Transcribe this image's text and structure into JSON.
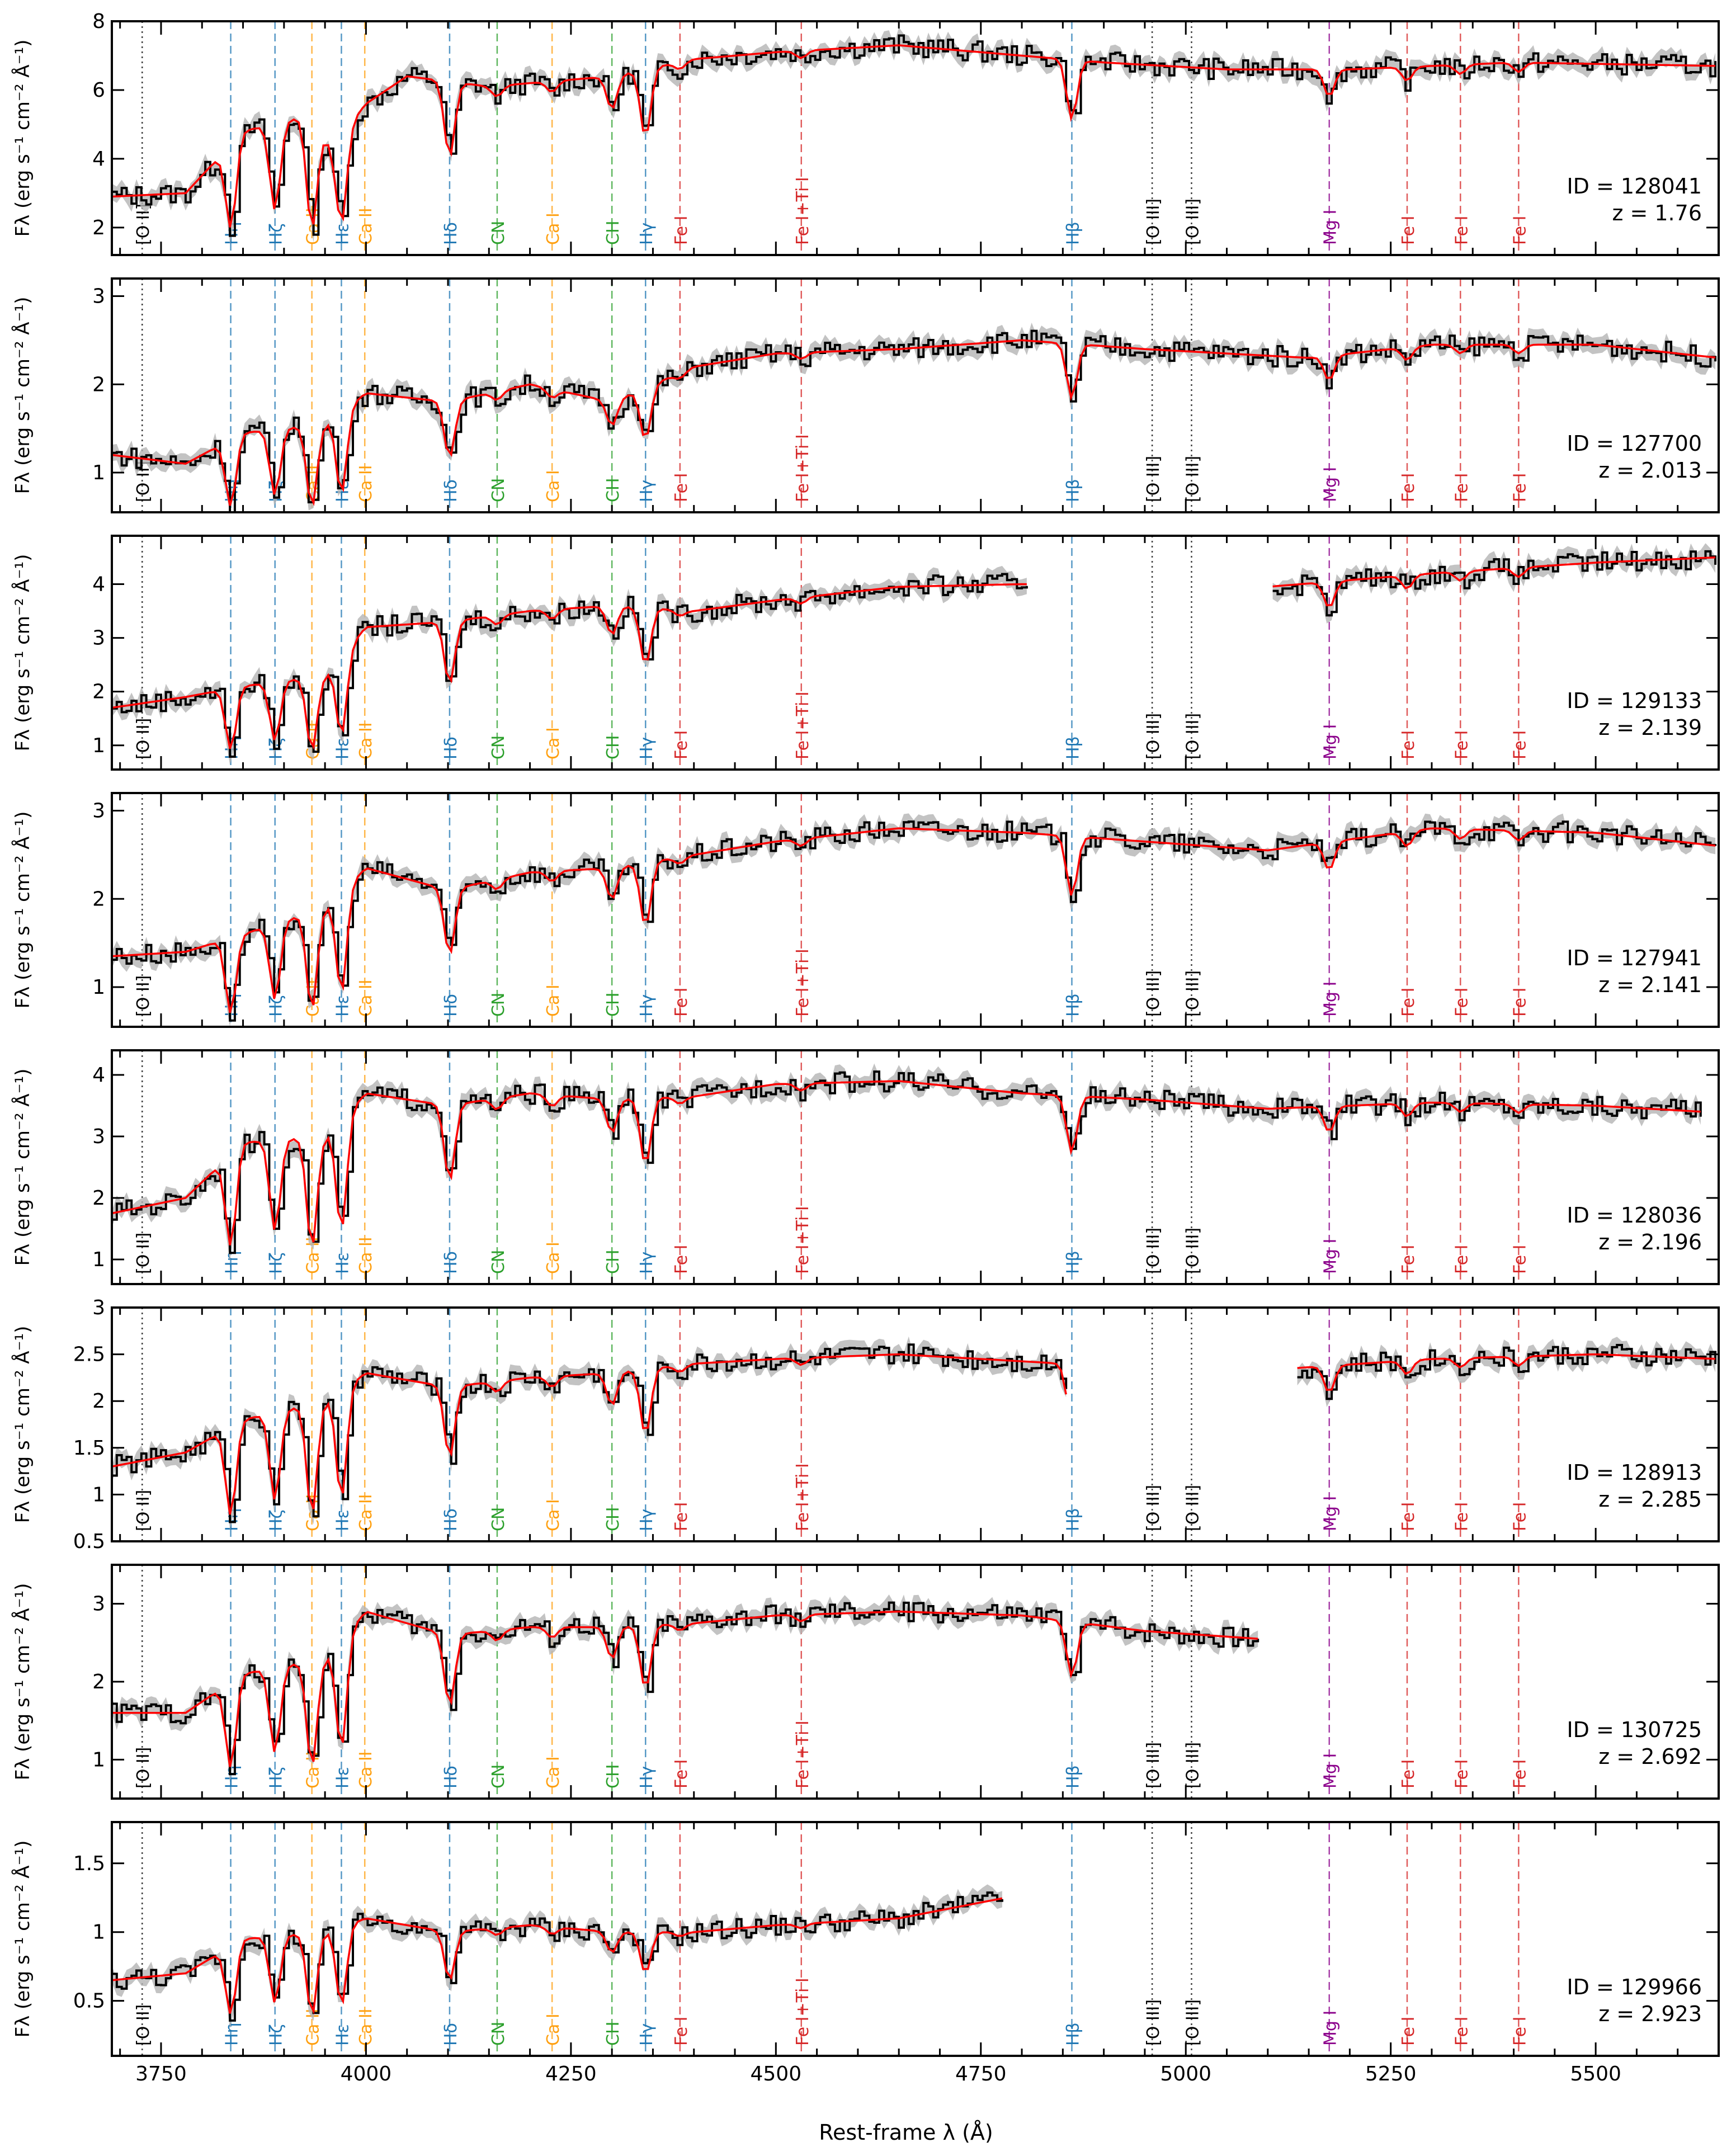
{
  "figure": {
    "xlabel": "Rest-frame λ (Å)",
    "ylabel": "Fλ (erg s⁻¹ cm⁻² Å⁻¹)",
    "x_ticks": [
      "3750",
      "4000",
      "4250",
      "4500",
      "4750",
      "5000",
      "5250",
      "5500"
    ],
    "colors": {
      "observed": "#000000",
      "error_band": "#b4b4b4",
      "model": "#ff0000",
      "balmer": "#1f77b4",
      "calcium": "#ff9f0e",
      "cn_ch": "#2ca02c",
      "iron": "#d62728",
      "magnesium": "#8b008b",
      "oxygen": "#000000"
    }
  },
  "lines": [
    {
      "label": "[O II]",
      "group": "oxygen"
    },
    {
      "label": "Hη",
      "group": "balmer"
    },
    {
      "label": "Hζ",
      "group": "balmer"
    },
    {
      "label": "Ca II",
      "group": "calcium"
    },
    {
      "label": "Hε",
      "group": "balmer"
    },
    {
      "label": "Ca II",
      "group": "calcium"
    },
    {
      "label": "Hδ",
      "group": "balmer"
    },
    {
      "label": "CN",
      "group": "cn_ch"
    },
    {
      "label": "Ca I",
      "group": "calcium"
    },
    {
      "label": "CH",
      "group": "cn_ch"
    },
    {
      "label": "Hγ",
      "group": "balmer"
    },
    {
      "label": "Fe I",
      "group": "iron"
    },
    {
      "label": "Fe I+Ti I",
      "group": "iron"
    },
    {
      "label": "Hβ",
      "group": "balmer"
    },
    {
      "label": "[O III]",
      "group": "oxygen"
    },
    {
      "label": "[O III]",
      "group": "oxygen"
    },
    {
      "label": "Mg I",
      "group": "magnesium"
    },
    {
      "label": "Fe I",
      "group": "iron"
    },
    {
      "label": "Fe I",
      "group": "iron"
    },
    {
      "label": "Fe I",
      "group": "iron"
    }
  ],
  "chart_data": [
    {
      "type": "line",
      "id_label": "ID = 128041",
      "z_label": "z = 1.76",
      "xlim": [
        3690,
        5650
      ],
      "ylim": [
        1.2,
        8.0
      ],
      "yticks": [
        2,
        4,
        6,
        8
      ],
      "continuum": [
        [
          3690,
          2.9
        ],
        [
          3780,
          3.0
        ],
        [
          3850,
          4.8
        ],
        [
          3920,
          5.2
        ],
        [
          3960,
          4.4
        ],
        [
          4000,
          5.6
        ],
        [
          4050,
          6.4
        ],
        [
          4150,
          6.1
        ],
        [
          4300,
          6.4
        ],
        [
          4400,
          6.9
        ],
        [
          4500,
          7.1
        ],
        [
          4650,
          7.3
        ],
        [
          4800,
          7.0
        ],
        [
          4900,
          6.8
        ],
        [
          5050,
          6.6
        ],
        [
          5200,
          6.6
        ],
        [
          5400,
          6.8
        ],
        [
          5650,
          6.7
        ]
      ],
      "gaps": []
    },
    {
      "type": "line",
      "id_label": "ID = 127700",
      "z_label": "z = 2.013",
      "xlim": [
        3690,
        5650
      ],
      "ylim": [
        0.55,
        3.2
      ],
      "yticks": [
        1,
        2,
        3
      ],
      "continuum": [
        [
          3690,
          1.2
        ],
        [
          3780,
          1.1
        ],
        [
          3850,
          1.45
        ],
        [
          3950,
          1.55
        ],
        [
          4000,
          1.9
        ],
        [
          4100,
          1.8
        ],
        [
          4200,
          2.0
        ],
        [
          4300,
          1.8
        ],
        [
          4400,
          2.2
        ],
        [
          4500,
          2.35
        ],
        [
          4650,
          2.4
        ],
        [
          4800,
          2.5
        ],
        [
          4950,
          2.4
        ],
        [
          5050,
          2.35
        ],
        [
          5150,
          2.3
        ],
        [
          5300,
          2.45
        ],
        [
          5500,
          2.45
        ],
        [
          5650,
          2.3
        ]
      ],
      "gaps": []
    },
    {
      "type": "line",
      "id_label": "ID = 129133",
      "z_label": "z = 2.139",
      "xlim": [
        3690,
        5650
      ],
      "ylim": [
        0.55,
        4.9
      ],
      "yticks": [
        1,
        2,
        3,
        4
      ],
      "continuum": [
        [
          3690,
          1.7
        ],
        [
          3780,
          1.9
        ],
        [
          3850,
          2.1
        ],
        [
          3950,
          2.3
        ],
        [
          4000,
          3.2
        ],
        [
          4100,
          3.3
        ],
        [
          4200,
          3.5
        ],
        [
          4300,
          3.6
        ],
        [
          4400,
          3.5
        ],
        [
          4500,
          3.7
        ],
        [
          4650,
          3.95
        ],
        [
          4800,
          4.0
        ],
        [
          5100,
          3.95
        ],
        [
          5300,
          4.2
        ],
        [
          5500,
          4.4
        ],
        [
          5650,
          4.5
        ]
      ],
      "gaps": [
        [
          4810,
          5100
        ]
      ]
    },
    {
      "type": "line",
      "id_label": "ID = 127941",
      "z_label": "z = 2.141",
      "xlim": [
        3690,
        5650
      ],
      "ylim": [
        0.55,
        3.2
      ],
      "yticks": [
        1,
        2,
        3
      ],
      "continuum": [
        [
          3690,
          1.35
        ],
        [
          3780,
          1.4
        ],
        [
          3850,
          1.6
        ],
        [
          3950,
          1.9
        ],
        [
          4000,
          2.35
        ],
        [
          4100,
          2.1
        ],
        [
          4200,
          2.3
        ],
        [
          4300,
          2.35
        ],
        [
          4400,
          2.5
        ],
        [
          4500,
          2.65
        ],
        [
          4650,
          2.8
        ],
        [
          4800,
          2.75
        ],
        [
          4950,
          2.65
        ],
        [
          5100,
          2.55
        ],
        [
          5300,
          2.8
        ],
        [
          5500,
          2.75
        ],
        [
          5650,
          2.6
        ]
      ],
      "gaps": []
    },
    {
      "type": "line",
      "id_label": "ID = 128036",
      "z_label": "z = 2.196",
      "xlim": [
        3690,
        5650
      ],
      "ylim": [
        0.6,
        4.4
      ],
      "yticks": [
        1,
        2,
        3,
        4
      ],
      "continuum": [
        [
          3690,
          1.75
        ],
        [
          3780,
          2.0
        ],
        [
          3850,
          2.9
        ],
        [
          3950,
          3.0
        ],
        [
          4000,
          3.7
        ],
        [
          4100,
          3.5
        ],
        [
          4200,
          3.7
        ],
        [
          4300,
          3.6
        ],
        [
          4400,
          3.65
        ],
        [
          4500,
          3.85
        ],
        [
          4650,
          3.9
        ],
        [
          4800,
          3.7
        ],
        [
          4950,
          3.6
        ],
        [
          5100,
          3.45
        ],
        [
          5300,
          3.55
        ],
        [
          5500,
          3.5
        ],
        [
          5630,
          3.4
        ]
      ],
      "gaps": []
    },
    {
      "type": "line",
      "id_label": "ID = 128913",
      "z_label": "z = 2.285",
      "xlim": [
        3690,
        5650
      ],
      "ylim": [
        0.5,
        3.0
      ],
      "yticks": [
        0.5,
        1.0,
        1.5,
        2.0,
        2.5,
        3.0
      ],
      "continuum": [
        [
          3690,
          1.3
        ],
        [
          3780,
          1.45
        ],
        [
          3850,
          1.8
        ],
        [
          3950,
          2.0
        ],
        [
          4000,
          2.3
        ],
        [
          4100,
          2.15
        ],
        [
          4200,
          2.25
        ],
        [
          4300,
          2.3
        ],
        [
          4400,
          2.4
        ],
        [
          4500,
          2.45
        ],
        [
          4650,
          2.5
        ],
        [
          4850,
          2.4
        ],
        [
          5130,
          2.35
        ],
        [
          5300,
          2.45
        ],
        [
          5500,
          2.5
        ],
        [
          5650,
          2.45
        ]
      ],
      "gaps": [
        [
          4860,
          5130
        ]
      ]
    },
    {
      "type": "line",
      "id_label": "ID = 130725",
      "z_label": "z = 2.692",
      "xlim": [
        3690,
        5650
      ],
      "ylim": [
        0.5,
        3.5
      ],
      "yticks": [
        1,
        2,
        3
      ],
      "continuum": [
        [
          3690,
          1.6
        ],
        [
          3780,
          1.6
        ],
        [
          3850,
          2.1
        ],
        [
          3950,
          2.3
        ],
        [
          4000,
          2.9
        ],
        [
          4100,
          2.6
        ],
        [
          4200,
          2.7
        ],
        [
          4300,
          2.7
        ],
        [
          4400,
          2.75
        ],
        [
          4500,
          2.85
        ],
        [
          4650,
          2.9
        ],
        [
          4800,
          2.85
        ],
        [
          4950,
          2.65
        ],
        [
          5090,
          2.55
        ]
      ],
      "gaps": [
        [
          5090,
          5650
        ]
      ]
    },
    {
      "type": "line",
      "id_label": "ID = 129966",
      "z_label": "z = 2.923",
      "xlim": [
        3690,
        5650
      ],
      "ylim": [
        0.1,
        1.8
      ],
      "yticks": [
        0.5,
        1.0,
        1.5
      ],
      "continuum": [
        [
          3690,
          0.65
        ],
        [
          3780,
          0.7
        ],
        [
          3850,
          0.95
        ],
        [
          3950,
          1.0
        ],
        [
          4000,
          1.1
        ],
        [
          4100,
          1.0
        ],
        [
          4200,
          1.05
        ],
        [
          4300,
          1.0
        ],
        [
          4400,
          1.0
        ],
        [
          4500,
          1.05
        ],
        [
          4650,
          1.1
        ],
        [
          4780,
          1.25
        ]
      ],
      "gaps": [
        [
          4780,
          5650
        ]
      ]
    }
  ]
}
